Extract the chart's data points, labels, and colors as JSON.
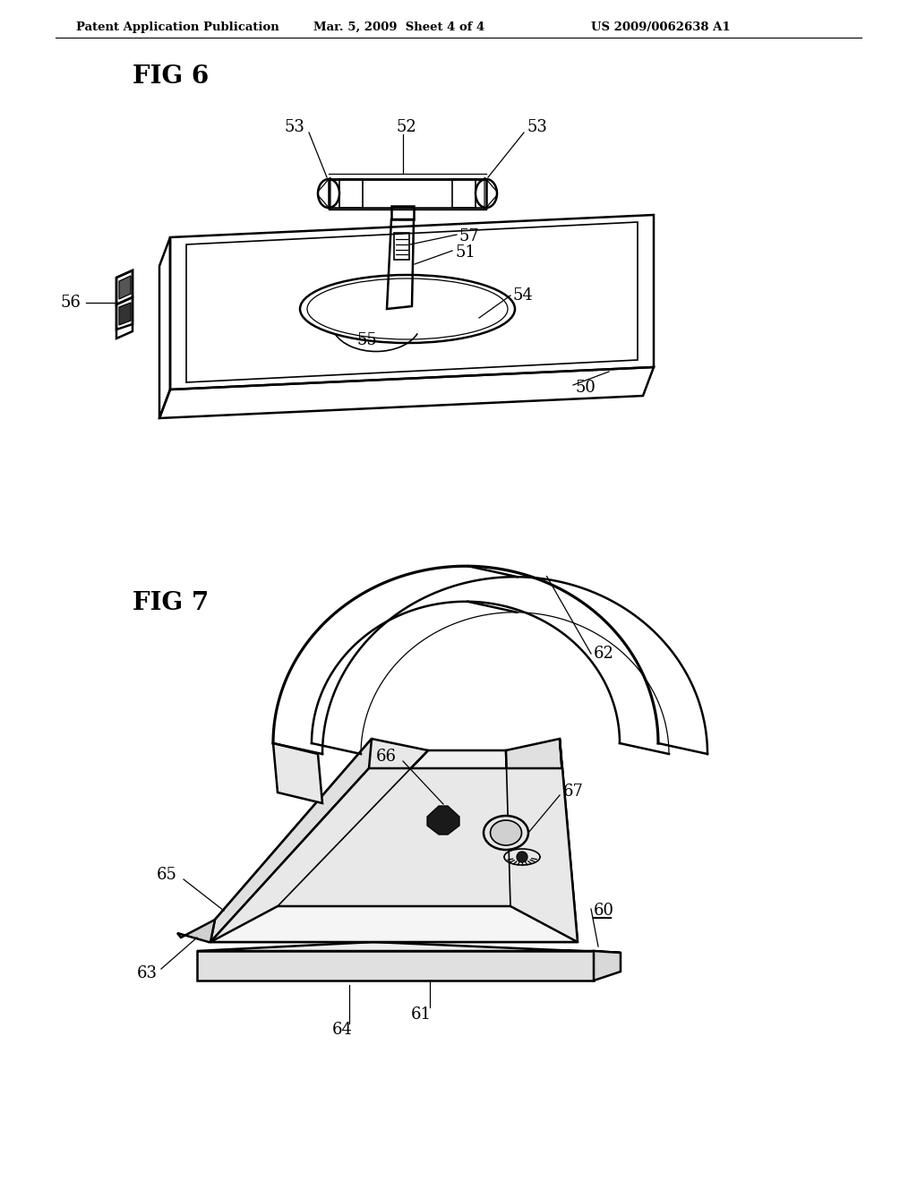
{
  "bg_color": "#ffffff",
  "line_color": "#000000",
  "header_text": "Patent Application Publication",
  "header_date": "Mar. 5, 2009  Sheet 4 of 4",
  "header_patent": "US 2009/0062638 A1",
  "fig6_label": "FIG 6",
  "fig7_label": "FIG 7"
}
